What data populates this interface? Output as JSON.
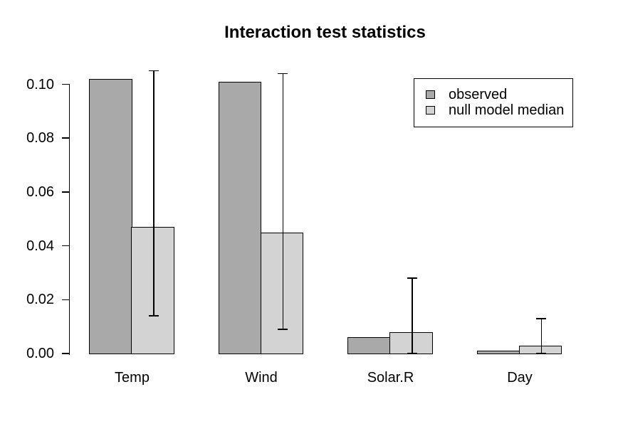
{
  "title": "Interaction test statistics",
  "chart_data": {
    "type": "bar",
    "title": "Interaction test statistics",
    "categories": [
      "Temp",
      "Wind",
      "Solar.R",
      "Day"
    ],
    "series": [
      {
        "name": "observed",
        "color": "#a9a9a9",
        "values": [
          0.102,
          0.101,
          0.006,
          0.001
        ]
      },
      {
        "name": "null model median",
        "color": "#d3d3d3",
        "values": [
          0.047,
          0.045,
          0.008,
          0.003
        ]
      }
    ],
    "error_bars": {
      "on_series": "null model median",
      "upper": [
        0.105,
        0.104,
        0.028,
        0.013
      ],
      "lower": [
        0.014,
        0.009,
        0.0,
        0.0
      ]
    },
    "xlabel": "",
    "ylabel": "",
    "ylim": [
      0,
      0.1
    ],
    "ytick_values": [
      0.0,
      0.02,
      0.04,
      0.06,
      0.08,
      0.1
    ],
    "ytick_labels": [
      "0.00",
      "0.02",
      "0.04",
      "0.06",
      "0.08",
      "0.10"
    ],
    "grid": false,
    "legend_position": "top-right",
    "axis_color": "#000000",
    "background": "#ffffff"
  }
}
